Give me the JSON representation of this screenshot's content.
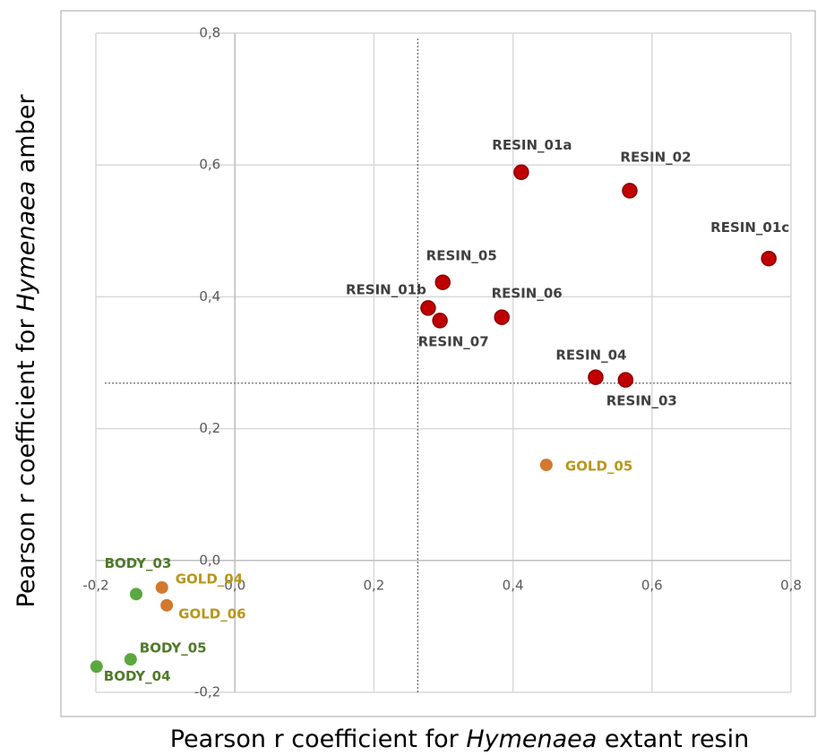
{
  "chart_data": {
    "type": "scatter",
    "x_label": [
      "Pearson r coefficient for ",
      "Hymenaea",
      " extant resin"
    ],
    "y_label": [
      "Pearson r coefficient for ",
      "Hymenaea",
      " amber"
    ],
    "xlim": [
      -0.2,
      0.8
    ],
    "ylim": [
      -0.2,
      0.8
    ],
    "xticks": [
      {
        "value": -0.2,
        "label": "-0,2"
      },
      {
        "value": 0,
        "label": "0,0"
      },
      {
        "value": 0.2,
        "label": "0,2"
      },
      {
        "value": 0.4,
        "label": "0,4"
      },
      {
        "value": 0.6,
        "label": "0,6"
      },
      {
        "value": 0.8,
        "label": "0,8"
      }
    ],
    "yticks": [
      {
        "value": -0.2,
        "label": "-0,2"
      },
      {
        "value": 0,
        "label": "0,0"
      },
      {
        "value": 0.2,
        "label": "0,2"
      },
      {
        "value": 0.4,
        "label": "0,4"
      },
      {
        "value": 0.6,
        "label": "0,6"
      },
      {
        "value": 0.8,
        "label": "0,8"
      }
    ],
    "grid": true,
    "reference_lines": {
      "x": 0.263,
      "y": 0.269
    },
    "series": [
      {
        "color": "#c00000",
        "label_color": "#404040",
        "labels": [
          "RESIN_01a",
          "RESIN_02",
          "RESIN_01c",
          "RESIN_05",
          "RESIN_01b",
          "RESIN_07",
          "RESIN_06",
          "RESIN_04",
          "RESIN_03"
        ],
        "x": [
          0.412,
          0.568,
          0.768,
          0.299,
          0.278,
          0.295,
          0.384,
          0.519,
          0.562
        ],
        "values": [
          0.589,
          0.561,
          0.458,
          0.422,
          0.383,
          0.364,
          0.369,
          0.278,
          0.274
        ]
      },
      {
        "color": "#d2782f",
        "label_color": "#b8961c",
        "labels": [
          "GOLD_05",
          "GOLD_04",
          "GOLD_06"
        ],
        "x": [
          0.448,
          -0.105,
          -0.098
        ],
        "values": [
          0.145,
          -0.041,
          -0.068
        ]
      },
      {
        "color": "#5aa83e",
        "label_color": "#4e7a28",
        "labels": [
          "BODY_03",
          "BODY_05",
          "BODY_04"
        ],
        "x": [
          -0.142,
          -0.15,
          -0.199
        ],
        "values": [
          -0.051,
          -0.15,
          -0.161
        ]
      }
    ]
  }
}
